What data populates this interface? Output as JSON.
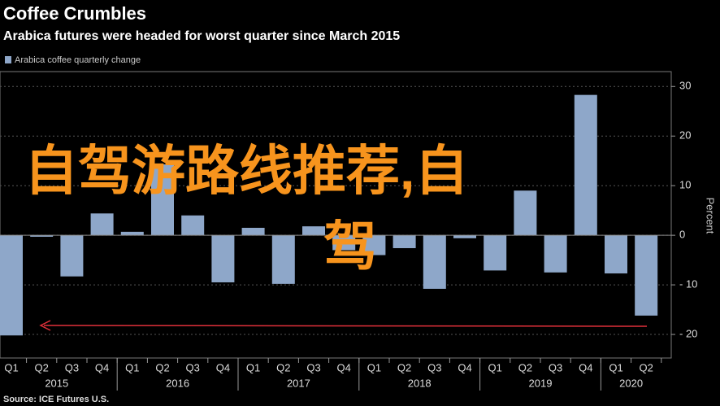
{
  "chart_data": {
    "type": "bar",
    "title": "Coffee Crumbles",
    "subtitle": "Arabica futures were headed for worst quarter since March 2015",
    "y_label": "Percent",
    "source": "Source: ICE Futures U.S.",
    "annotation": "自驾游路线推荐,自驾",
    "series": [
      {
        "name": "Arabica coffee quarterly change",
        "color": "#8ea7c9",
        "values": [
          -20.2,
          -0.3,
          -8.3,
          4.4,
          0.7,
          14.3,
          4.0,
          -9.5,
          1.5,
          -9.8,
          1.8,
          -3,
          -4,
          -2.6,
          -10.8,
          -0.6,
          -7.1,
          9,
          -7.5,
          28.3,
          -7.7,
          -16.2
        ]
      }
    ],
    "categories": [
      "Q1",
      "Q2",
      "Q3",
      "Q4",
      "Q1",
      "Q2",
      "Q3",
      "Q4",
      "Q1",
      "Q2",
      "Q3",
      "Q4",
      "Q1",
      "Q2",
      "Q3",
      "Q4",
      "Q1",
      "Q2",
      "Q3",
      "Q4",
      "Q1",
      "Q2"
    ],
    "years": [
      "2015",
      "2016",
      "2017",
      "2018",
      "2019",
      "2020"
    ],
    "ylim": [
      -24.75,
      33
    ],
    "yticks": [
      {
        "value": -20,
        "label": "- 20"
      },
      {
        "value": -10,
        "label": "- 10"
      },
      0,
      10,
      20,
      30
    ],
    "grid": true
  }
}
